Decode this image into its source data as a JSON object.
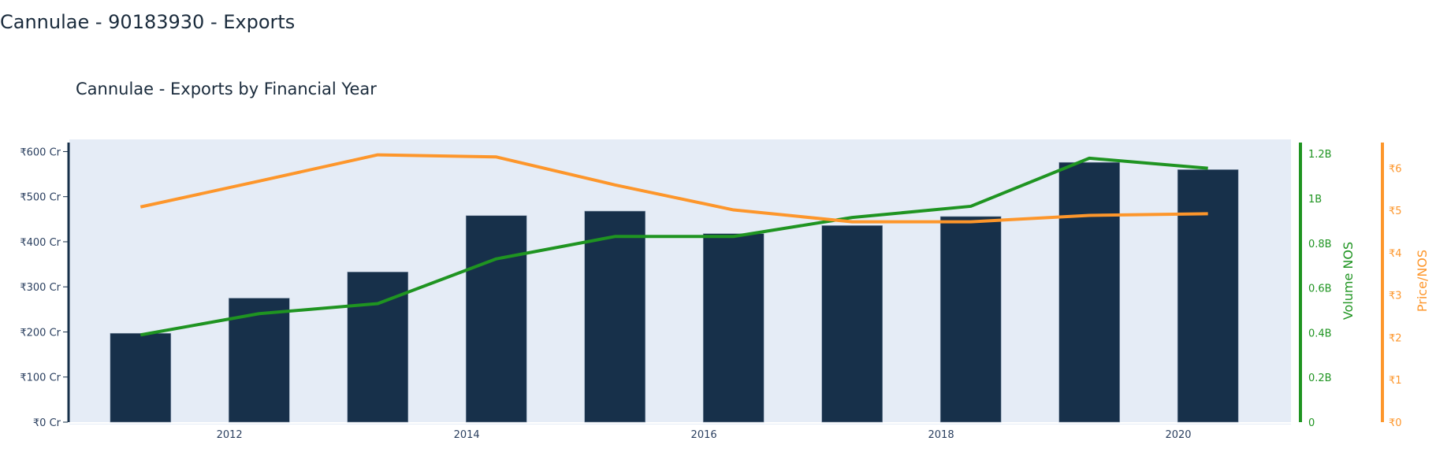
{
  "page": {
    "title": "Cannulae - 90183930 - Exports"
  },
  "chart_data": {
    "type": "bar+line",
    "title": "Cannulae - Exports by Financial Year",
    "x": [
      "2011-04-01",
      "2012-04-01",
      "2013-04-01",
      "2014-04-01",
      "2015-04-01",
      "2016-04-01",
      "2017-04-01",
      "2018-04-01",
      "2019-04-01",
      "2020-04-01"
    ],
    "x_ticks": [
      "2012",
      "2014",
      "2016",
      "2018",
      "2020"
    ],
    "x_tick_values": [
      2012,
      2014,
      2016,
      2018,
      2020
    ],
    "xlim": [
      2010.65,
      2020.95
    ],
    "series": [
      {
        "kind": "bar",
        "axis": "y",
        "values": [
          197,
          275,
          333,
          458,
          468,
          418,
          436,
          456,
          576,
          560
        ],
        "color": "#17304a"
      },
      {
        "kind": "line",
        "axis": "y2",
        "name": "Volume NOS",
        "values": [
          0.39,
          0.485,
          0.53,
          0.73,
          0.83,
          0.83,
          0.915,
          0.965,
          1.18,
          1.135
        ],
        "color": "#1f9421"
      },
      {
        "kind": "line",
        "axis": "y3",
        "name": "Price/NOS",
        "values": [
          5.08,
          5.69,
          6.31,
          6.26,
          5.6,
          5.01,
          4.73,
          4.73,
          4.88,
          4.92
        ],
        "color": "#fd962b"
      }
    ],
    "y": {
      "label": "",
      "ylim": [
        0,
        620
      ],
      "ticks": [
        0,
        100,
        200,
        300,
        400,
        500,
        600
      ],
      "tick_labels": [
        "₹0 Cr",
        "₹100 Cr",
        "₹200 Cr",
        "₹300 Cr",
        "₹400 Cr",
        "₹500 Cr",
        "₹600 Cr"
      ],
      "color": "#17304a"
    },
    "y2": {
      "label": "Volume NOS",
      "ylim": [
        0,
        1.25
      ],
      "ticks": [
        0,
        0.2,
        0.4,
        0.6,
        0.8,
        1,
        1.2
      ],
      "tick_labels": [
        "0",
        "0.2B",
        "0.4B",
        "0.6B",
        "0.8B",
        "1B",
        "1.2B"
      ],
      "color": "#1f9421"
    },
    "y3": {
      "label": "Price/NOS",
      "ylim": [
        0,
        6.6
      ],
      "ticks": [
        0,
        1,
        2,
        3,
        4,
        5,
        6
      ],
      "tick_labels": [
        "₹0",
        "₹1",
        "₹2",
        "₹3",
        "₹4",
        "₹5",
        "₹6"
      ],
      "color": "#fd962b"
    },
    "plot_bgcolor": "#e5ecf6",
    "grid": false
  }
}
